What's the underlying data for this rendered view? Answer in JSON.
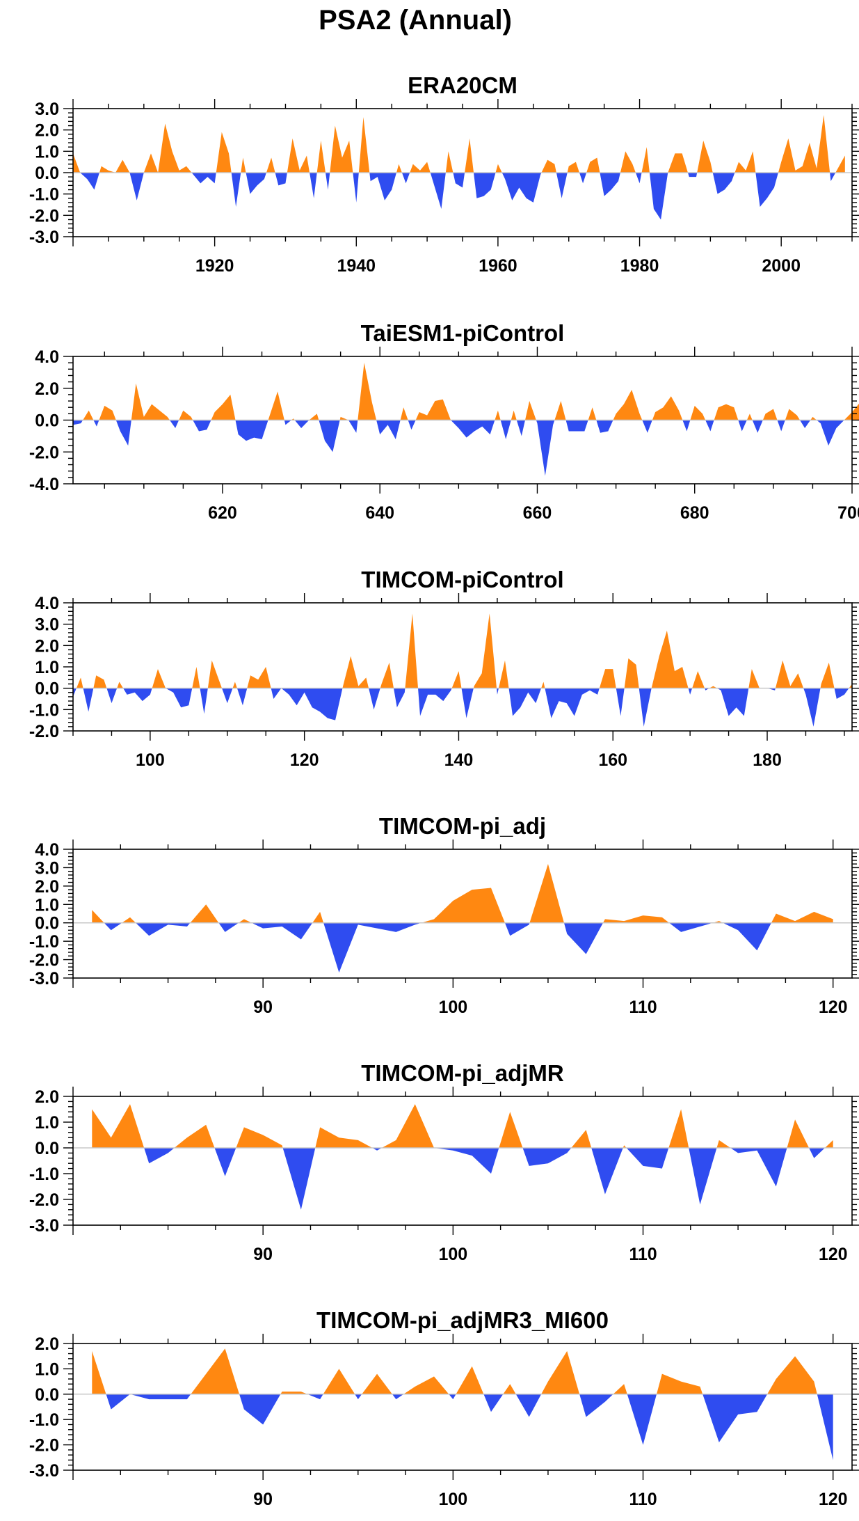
{
  "title": "PSA2 (Annual)",
  "colors": {
    "positive": "#ff8811",
    "negative": "#2f4cf0",
    "axis": "#000000",
    "zero": "#c8c8c8"
  },
  "chart_data": [
    {
      "type": "area",
      "title": "ERA20CM",
      "xlabel": "",
      "ylabel": "",
      "xlim": [
        1900,
        2010
      ],
      "ylim": [
        -3,
        3
      ],
      "yticks": [
        -3,
        -2,
        -1,
        0,
        1,
        2,
        3
      ],
      "ytick_labels": [
        "-3.0",
        "-2.0",
        "-1.0",
        "0.0",
        "1.0",
        "2.0",
        "3.0"
      ],
      "xticks": [
        1920,
        1940,
        1960,
        1980,
        2000
      ],
      "xtick_labels": [
        "1920",
        "1940",
        "1960",
        "1980",
        "2000"
      ],
      "x_start": 1900,
      "values": [
        0.9,
        0.0,
        -0.3,
        -0.8,
        0.3,
        0.1,
        0.0,
        0.6,
        0.0,
        -1.3,
        0.0,
        0.9,
        0.0,
        2.3,
        1.0,
        0.1,
        0.3,
        -0.1,
        -0.5,
        -0.2,
        -0.5,
        1.9,
        0.9,
        -1.6,
        0.7,
        -1.0,
        -0.6,
        -0.3,
        0.7,
        -0.6,
        -0.5,
        1.6,
        0.1,
        0.8,
        -1.2,
        1.5,
        -0.8,
        2.2,
        0.7,
        1.5,
        -1.4,
        2.6,
        -0.4,
        -0.2,
        -1.3,
        -0.8,
        0.4,
        -0.5,
        0.4,
        0.1,
        0.5,
        -0.6,
        -1.7,
        1.0,
        -0.5,
        -0.7,
        1.6,
        -1.2,
        -1.1,
        -0.8,
        0.4,
        -0.3,
        -1.3,
        -0.7,
        -1.2,
        -1.4,
        -0.1,
        0.6,
        0.4,
        -1.2,
        0.3,
        0.5,
        -0.5,
        0.5,
        0.7,
        -1.1,
        -0.8,
        -0.4,
        1.0,
        0.4,
        -0.5,
        1.2,
        -1.7,
        -2.2,
        0.0,
        0.9,
        0.9,
        -0.2,
        -0.2,
        1.5,
        0.5,
        -1.0,
        -0.8,
        -0.4,
        0.5,
        0.1,
        1.0,
        -1.6,
        -1.2,
        -0.7,
        0.5,
        1.6,
        0.1,
        0.3,
        1.4,
        0.2,
        2.7,
        -0.4,
        0.2,
        0.8
      ]
    },
    {
      "type": "area",
      "title": "TaiESM1-piControl",
      "xlabel": "",
      "ylabel": "",
      "xlim": [
        601,
        700
      ],
      "ylim": [
        -4,
        4
      ],
      "yticks": [
        -4,
        -2,
        0,
        2,
        4
      ],
      "ytick_labels": [
        "-4.0",
        "-2.0",
        "0.0",
        "2.0",
        "4.0"
      ],
      "xticks": [
        620,
        640,
        660,
        680,
        700
      ],
      "xtick_labels": [
        "620",
        "640",
        "660",
        "680",
        "700"
      ],
      "x_start": 601,
      "values": [
        -0.3,
        -0.2,
        0.6,
        -0.4,
        0.9,
        0.6,
        -0.7,
        -1.6,
        2.3,
        0.2,
        1.0,
        0.6,
        0.2,
        -0.5,
        0.6,
        0.2,
        -0.7,
        -0.6,
        0.5,
        1.0,
        1.6,
        -0.9,
        -1.3,
        -1.1,
        -1.2,
        0.3,
        1.8,
        -0.3,
        0.1,
        -0.5,
        0.0,
        0.4,
        -1.3,
        -2.0,
        0.2,
        0.0,
        -0.8,
        3.6,
        1.1,
        -0.9,
        -0.3,
        -1.2,
        0.8,
        -0.6,
        0.5,
        0.3,
        1.2,
        1.3,
        0.0,
        -0.5,
        -1.1,
        -0.7,
        -0.4,
        -0.9,
        0.6,
        -1.2,
        0.6,
        -1.0,
        1.2,
        -0.2,
        -3.5,
        -0.3,
        1.2,
        -0.7,
        -0.7,
        -0.7,
        0.8,
        -0.8,
        -0.7,
        0.4,
        1.0,
        1.9,
        0.4,
        -0.8,
        0.5,
        0.8,
        1.5,
        0.6,
        -0.7,
        0.9,
        0.4,
        -0.7,
        0.8,
        1.0,
        0.8,
        -0.7,
        0.4,
        -0.8,
        0.4,
        0.7,
        -0.7,
        0.7,
        0.3,
        -0.5,
        0.2,
        -0.2,
        -1.6,
        -0.5,
        0.0,
        0.5,
        1.1
      ]
    },
    {
      "type": "area",
      "title": "TIMCOM-piControl",
      "xlabel": "",
      "ylabel": "",
      "xlim": [
        90,
        191
      ],
      "ylim": [
        -2,
        4
      ],
      "yticks": [
        -2,
        -1,
        0,
        1,
        2,
        3,
        4
      ],
      "ytick_labels": [
        "-2.0",
        "-1.0",
        "0.0",
        "1.0",
        "2.0",
        "3.0",
        "4.0"
      ],
      "xticks": [
        100,
        120,
        140,
        160,
        180
      ],
      "xtick_labels": [
        "100",
        "120",
        "140",
        "160",
        "180"
      ],
      "x_start": 90,
      "values": [
        -0.4,
        0.5,
        -1.1,
        0.6,
        0.4,
        -0.7,
        0.3,
        -0.3,
        -0.2,
        -0.6,
        -0.3,
        0.9,
        0.0,
        -0.2,
        -0.9,
        -0.8,
        1.0,
        -1.2,
        1.3,
        0.3,
        -0.7,
        0.3,
        -0.8,
        0.6,
        0.4,
        1.0,
        -0.5,
        0.0,
        -0.3,
        -0.8,
        -0.2,
        -0.9,
        -1.1,
        -1.4,
        -1.5,
        0.1,
        1.5,
        0.1,
        0.5,
        -1.0,
        0.2,
        1.2,
        -0.9,
        -0.2,
        3.5,
        -1.3,
        -0.3,
        -0.3,
        -0.6,
        -0.1,
        0.8,
        -1.4,
        0.1,
        0.7,
        3.5,
        -0.3,
        1.3,
        -1.3,
        -0.9,
        -0.2,
        -0.7,
        0.3,
        -1.4,
        -0.6,
        -0.7,
        -1.3,
        -0.3,
        -0.1,
        -0.3,
        0.9,
        0.9,
        -1.3,
        1.4,
        1.1,
        -1.8,
        0.0,
        1.5,
        2.7,
        0.8,
        1.0,
        -0.3,
        0.8,
        -0.1,
        0.1,
        -0.1,
        -1.3,
        -0.9,
        -1.3,
        0.9,
        0.0,
        0.0,
        -0.1,
        1.3,
        0.1,
        0.7,
        -0.3,
        -1.8,
        0.2,
        1.2,
        -0.5,
        -0.3,
        0.2
      ]
    },
    {
      "type": "area",
      "title": "TIMCOM-pi_adj",
      "xlabel": "",
      "ylabel": "",
      "xlim": [
        80,
        121
      ],
      "ylim": [
        -3,
        4
      ],
      "yticks": [
        -3,
        -2,
        -1,
        0,
        1,
        2,
        3,
        4
      ],
      "ytick_labels": [
        "-3.0",
        "-2.0",
        "-1.0",
        "0.0",
        "1.0",
        "2.0",
        "3.0",
        "4.0"
      ],
      "xticks": [
        90,
        100,
        110,
        120
      ],
      "xtick_labels": [
        "90",
        "100",
        "110",
        "120"
      ],
      "x_start": 81,
      "values": [
        0.7,
        -0.4,
        0.3,
        -0.7,
        -0.1,
        -0.2,
        1.0,
        -0.5,
        0.2,
        -0.3,
        -0.2,
        -0.9,
        0.6,
        -2.7,
        -0.1,
        -0.3,
        -0.5,
        -0.1,
        0.2,
        1.2,
        1.8,
        1.9,
        -0.7,
        -0.1,
        3.2,
        -0.6,
        -1.7,
        0.2,
        0.1,
        0.4,
        0.3,
        -0.5,
        -0.2,
        0.1,
        -0.4,
        -1.5,
        0.5,
        0.1,
        0.6,
        0.2
      ]
    },
    {
      "type": "area",
      "title": "TIMCOM-pi_adjMR",
      "xlabel": "",
      "ylabel": "",
      "xlim": [
        80,
        121
      ],
      "ylim": [
        -3,
        2
      ],
      "yticks": [
        -3,
        -2,
        -1,
        0,
        1,
        2
      ],
      "ytick_labels": [
        "-3.0",
        "-2.0",
        "-1.0",
        "0.0",
        "1.0",
        "2.0"
      ],
      "xticks": [
        90,
        100,
        110,
        120
      ],
      "xtick_labels": [
        "90",
        "100",
        "110",
        "120"
      ],
      "x_start": 81,
      "values": [
        1.5,
        0.4,
        1.7,
        -0.6,
        -0.2,
        0.4,
        0.9,
        -1.1,
        0.8,
        0.5,
        0.1,
        -2.4,
        0.8,
        0.4,
        0.3,
        -0.1,
        0.3,
        1.7,
        0.0,
        -0.1,
        -0.3,
        -1.0,
        1.4,
        -0.7,
        -0.6,
        -0.2,
        0.7,
        -1.8,
        0.1,
        -0.7,
        -0.8,
        1.5,
        -2.2,
        0.3,
        -0.2,
        -0.1,
        -1.5,
        1.1,
        -0.4,
        0.3
      ]
    },
    {
      "type": "area",
      "title": "TIMCOM-pi_adjMR3_MI600",
      "xlabel": "",
      "ylabel": "",
      "xlim": [
        80,
        121
      ],
      "ylim": [
        -3,
        2
      ],
      "yticks": [
        -3,
        -2,
        -1,
        0,
        1,
        2
      ],
      "ytick_labels": [
        "-3.0",
        "-2.0",
        "-1.0",
        "0.0",
        "1.0",
        "2.0"
      ],
      "xticks": [
        90,
        100,
        110,
        120
      ],
      "xtick_labels": [
        "90",
        "100",
        "110",
        "120"
      ],
      "x_start": 81,
      "values": [
        1.7,
        -0.6,
        0.0,
        -0.2,
        -0.2,
        -0.2,
        0.8,
        1.8,
        -0.6,
        -1.2,
        0.1,
        0.1,
        -0.2,
        1.0,
        -0.2,
        0.8,
        -0.2,
        0.3,
        0.7,
        -0.2,
        1.1,
        -0.7,
        0.4,
        -0.9,
        0.5,
        1.7,
        -0.9,
        -0.3,
        0.4,
        -2.0,
        0.8,
        0.5,
        0.3,
        -1.9,
        -0.8,
        -0.7,
        0.6,
        1.5,
        0.5,
        -2.6
      ]
    }
  ]
}
